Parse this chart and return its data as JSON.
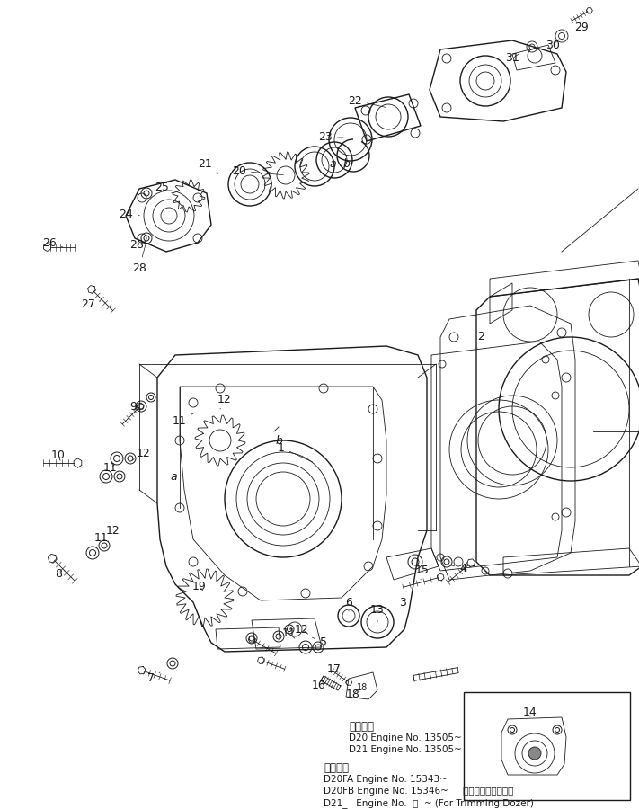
{
  "background_color": "#ffffff",
  "fig_width": 7.11,
  "fig_height": 9.0,
  "dpi": 100,
  "line_color": "#1a1a1a",
  "text_color": "#1a1a1a",
  "font_size_labels": 9,
  "font_size_bottom": 7.5,
  "bottom_text1": [
    "適用号番",
    "D20 Engine No. 13505~",
    "D21 Engine No. 13505~"
  ],
  "bottom_text2": [
    "適用号番",
    "D20FA Engine No. 15343~",
    "D20FB Engine No. 15346~     トリミングドーザ用",
    "D21_   Engine No.  ・  ~ (For Trimming Dozer)"
  ]
}
